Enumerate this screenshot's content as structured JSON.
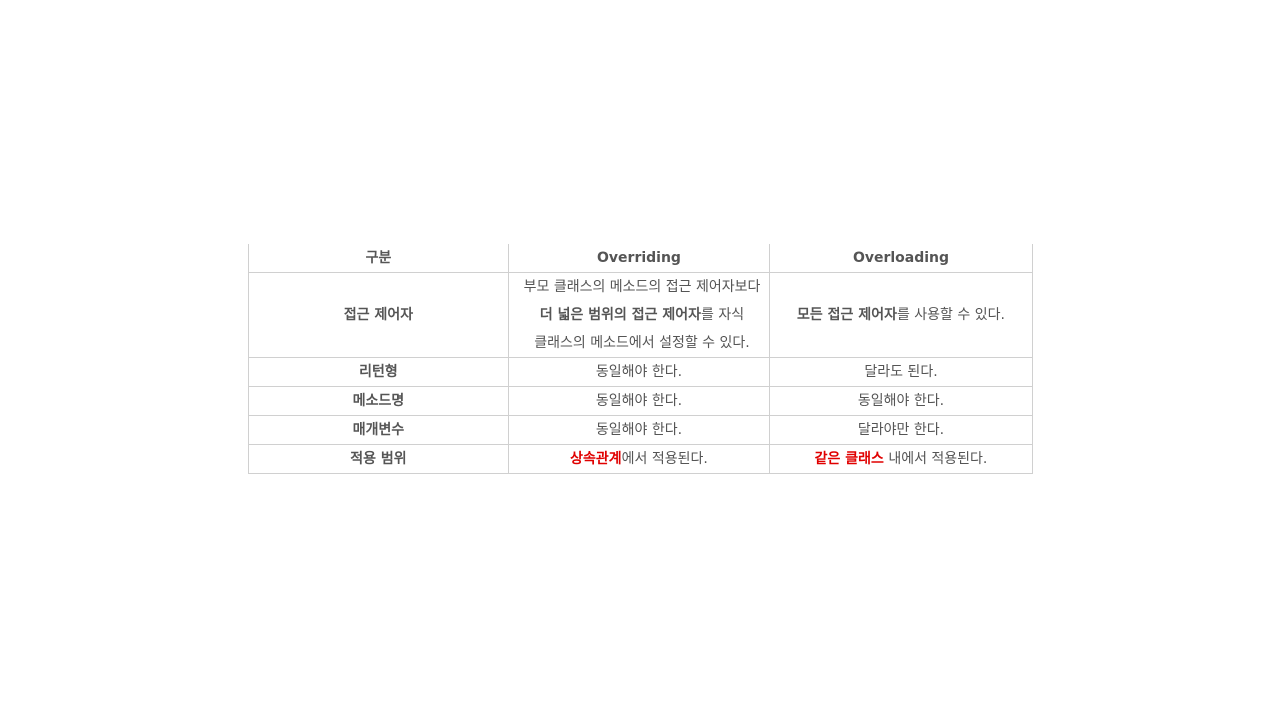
{
  "table": {
    "headers": [
      "구분",
      "Overriding",
      "Overloading"
    ],
    "access": {
      "label": "접근 제어자",
      "overriding": {
        "part1": "부모 클래스의 메소드의 접근 제어자보다 ",
        "bold": "더 넓은 범위의 접근 제어자",
        "part2": "를 자식 클래스의 메소드에서 설정할 수 있다."
      },
      "overloading": {
        "bold": "모든 접근 제어자",
        "rest": "를 사용할 수 있다."
      }
    },
    "return_type": {
      "label": "리턴형",
      "overriding": "동일해야 한다.",
      "overloading": "달라도 된다."
    },
    "method_name": {
      "label": "메소드명",
      "overriding": "동일해야 한다.",
      "overloading": "동일해야 한다."
    },
    "parameters": {
      "label": "매개변수",
      "overriding": "동일해야 한다.",
      "overloading": "달라야만 한다."
    },
    "scope": {
      "label": "적용 범위",
      "overriding": {
        "highlight": "상속관계",
        "rest": "에서 적용된다."
      },
      "overloading": {
        "highlight": "같은 클래스",
        "rest": " 내에서 적용된다."
      }
    }
  },
  "colors": {
    "text": "#555555",
    "border": "#d0d0d0",
    "highlight": "#e00000"
  }
}
